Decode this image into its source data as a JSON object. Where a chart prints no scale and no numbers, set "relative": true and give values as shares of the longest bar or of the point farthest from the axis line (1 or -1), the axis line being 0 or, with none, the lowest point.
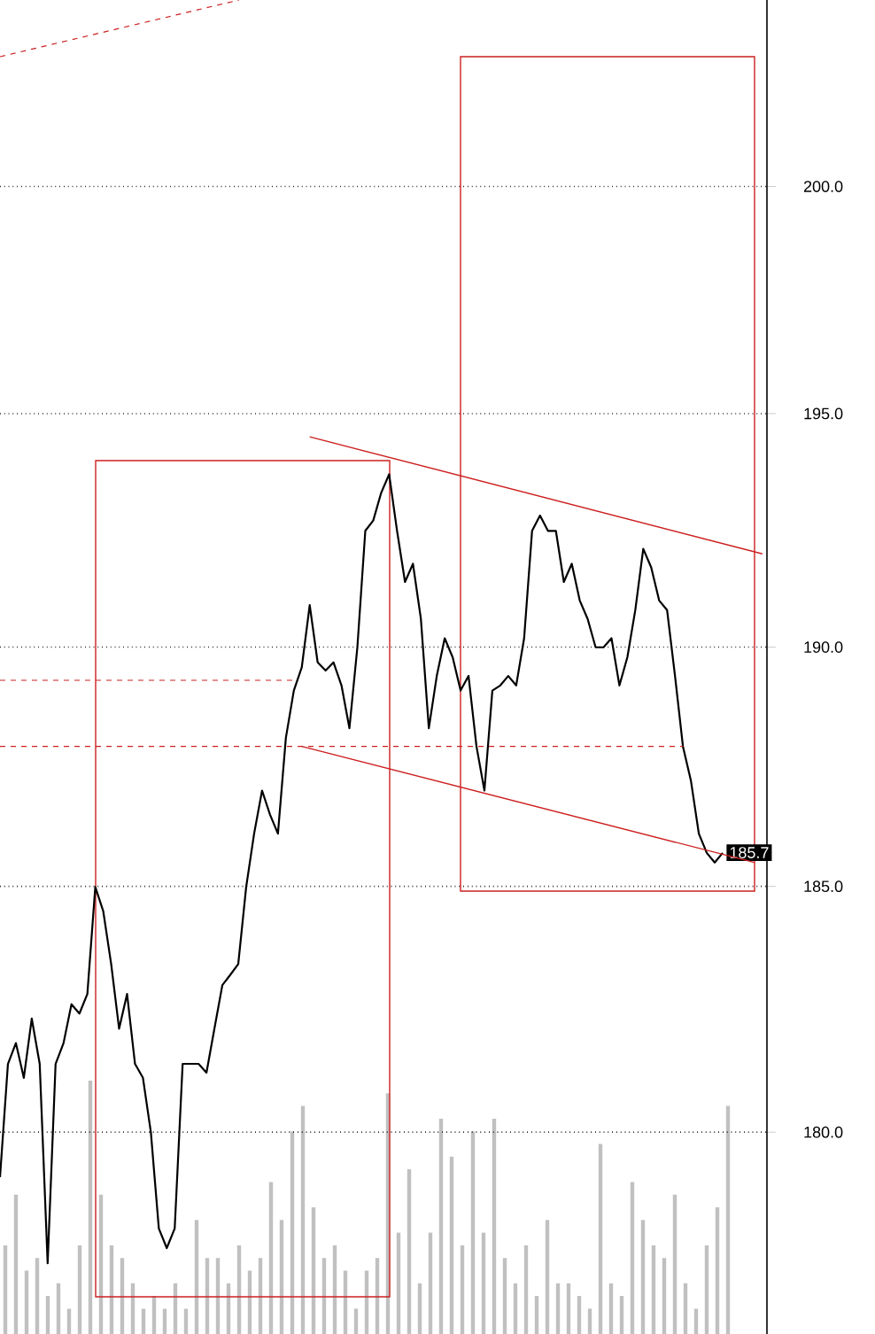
{
  "chart_data": [
    {
      "type": "bar",
      "relative": true,
      "color": "#c0c0c0",
      "categories": [
        null,
        null,
        null,
        null,
        null,
        null,
        null,
        null,
        null,
        null,
        null,
        null,
        null,
        null,
        null,
        null,
        null,
        null,
        null,
        null,
        null,
        null,
        null,
        null,
        null,
        null,
        null,
        null,
        null,
        null,
        null,
        null,
        null,
        null,
        null,
        null,
        null,
        null,
        null,
        null,
        null,
        null,
        null,
        null,
        null,
        null,
        null,
        null,
        null,
        null,
        null,
        null,
        null,
        null,
        null,
        null,
        null,
        null,
        null,
        null,
        null,
        null,
        null,
        null,
        null,
        null,
        null,
        null,
        null
      ],
      "values": [
        0.35,
        0.55,
        0.25,
        0.3,
        0.15,
        0.2,
        0.1,
        0.35,
        1.0,
        0.55,
        0.35,
        0.3,
        0.2,
        0.1,
        0.15,
        0.1,
        0.2,
        0.1,
        0.45,
        0.3,
        0.3,
        0.2,
        0.35,
        0.25,
        0.3,
        0.6,
        0.45,
        0.8,
        0.9,
        0.5,
        0.3,
        0.35,
        0.25,
        0.1,
        0.25,
        0.3,
        0.95,
        0.4,
        0.65,
        0.2,
        0.4,
        0.85,
        0.7,
        0.35,
        0.8,
        0.4,
        0.85,
        0.3,
        0.2,
        0.35,
        0.15,
        0.45,
        0.2,
        0.2,
        0.15,
        0.1,
        0.75,
        0.2,
        0.15,
        0.6,
        0.45,
        0.35,
        0.3,
        0.55,
        0.2,
        0.1,
        0.35,
        0.5,
        0.9
      ]
    },
    {
      "type": "line",
      "log": true,
      "ylim": [
        176,
        204.2
      ],
      "tick_labels": "y",
      "grid": "y",
      "yticks": [
        {
          "value": 180,
          "label": "180.0"
        },
        {
          "value": 185,
          "label": "185.0"
        },
        {
          "value": 190,
          "label": "190.0"
        },
        {
          "value": 195,
          "label": "195.0"
        },
        {
          "value": 200,
          "label": "200.0"
        }
      ],
      "categories": [
        null,
        null,
        null,
        null,
        null,
        null,
        null,
        null,
        null,
        null,
        null,
        null,
        null,
        null,
        null,
        null,
        null,
        null,
        null,
        null,
        null,
        null,
        null,
        null,
        null,
        null,
        null,
        null,
        null,
        null,
        null,
        null,
        null,
        null,
        null,
        null,
        null,
        null,
        null,
        null,
        null,
        null,
        null,
        null,
        null,
        null,
        null,
        null,
        null,
        null,
        null,
        null,
        null,
        null,
        null,
        null,
        null,
        null,
        null,
        null,
        null,
        null,
        null,
        null,
        null,
        null,
        null,
        null,
        null,
        null,
        null,
        null,
        null,
        null,
        null,
        null,
        null,
        null,
        null,
        null,
        null,
        null,
        null,
        null,
        null,
        null,
        null,
        null,
        null,
        null,
        null,
        null,
        null,
        null,
        null,
        null,
        null
      ],
      "series": [
        {
          "color": "#000000",
          "values": [
            179.1,
            181.4,
            181.8,
            181.1,
            182.3,
            181.4,
            177.4,
            181.4,
            181.8,
            182.6,
            182.4,
            182.8,
            185.0,
            184.5,
            183.4,
            182.1,
            182.8,
            181.4,
            181.1,
            180.0,
            178.1,
            177.7,
            178.1,
            181.4,
            181.4,
            181.4,
            181.2,
            182.1,
            183.0,
            183.2,
            183.4,
            185.0,
            186.1,
            187.0,
            186.5,
            186.1,
            188.1,
            189.1,
            189.6,
            190.9,
            189.7,
            189.5,
            189.7,
            189.2,
            188.3,
            190.0,
            192.5,
            192.7,
            193.3,
            193.7,
            192.5,
            191.4,
            191.8,
            190.6,
            188.3,
            189.4,
            190.2,
            189.8,
            189.1,
            189.4,
            187.9,
            187.0,
            189.1,
            189.2,
            189.4,
            189.2,
            190.2,
            192.5,
            192.8,
            192.5,
            192.5,
            191.4,
            191.8,
            191.0,
            190.6,
            190.0,
            190.0,
            190.2,
            189.2,
            189.8,
            190.8,
            192.1,
            191.7,
            191.0,
            190.8,
            189.4,
            187.9,
            187.2,
            186.1,
            185.7,
            185.5,
            185.7,
            null,
            null,
            null,
            null,
            null
          ],
          "value_labels": [
            null,
            null,
            null,
            null,
            null,
            null,
            null,
            null,
            null,
            null,
            null,
            null,
            null,
            null,
            null,
            null,
            null,
            null,
            null,
            null,
            null,
            null,
            null,
            null,
            null,
            null,
            null,
            null,
            null,
            null,
            null,
            null,
            null,
            null,
            null,
            null,
            null,
            null,
            null,
            null,
            null,
            null,
            null,
            null,
            null,
            null,
            null,
            null,
            null,
            null,
            null,
            null,
            null,
            null,
            null,
            null,
            null,
            null,
            null,
            null,
            null,
            null,
            null,
            null,
            null,
            null,
            null,
            null,
            null,
            null,
            null,
            null,
            null,
            null,
            null,
            null,
            null,
            null,
            null,
            null,
            null,
            null,
            null,
            null,
            null,
            null,
            null,
            null,
            null,
            null,
            null,
            "185.7",
            null,
            null,
            null,
            null,
            null
          ]
        },
        {
          "color": "#cc2020",
          "values": [
            null,
            null,
            null,
            null,
            null,
            null,
            null,
            null,
            null,
            null,
            null,
            null,
            null,
            null,
            null,
            null,
            null,
            null,
            null,
            null,
            null,
            null,
            null,
            null,
            null,
            null,
            null,
            null,
            null,
            null,
            null,
            null,
            null,
            null,
            null,
            null,
            null,
            null,
            null,
            194.5,
            null,
            null,
            null,
            null,
            null,
            null,
            null,
            null,
            null,
            null,
            null,
            null,
            null,
            null,
            null,
            null,
            null,
            null,
            null,
            null,
            null,
            null,
            null,
            null,
            null,
            null,
            null,
            null,
            null,
            null,
            null,
            null,
            null,
            null,
            null,
            null,
            null,
            null,
            null,
            null,
            null,
            null,
            null,
            null,
            null,
            null,
            null,
            null,
            null,
            null,
            null,
            null,
            null,
            null,
            null,
            null,
            192.0
          ]
        },
        {
          "color": "#cc2020",
          "values": [
            null,
            null,
            null,
            null,
            null,
            null,
            null,
            null,
            null,
            null,
            null,
            null,
            null,
            null,
            null,
            null,
            null,
            null,
            null,
            null,
            null,
            null,
            null,
            null,
            null,
            null,
            null,
            null,
            null,
            null,
            null,
            null,
            null,
            null,
            null,
            null,
            null,
            null,
            187.9,
            null,
            null,
            null,
            null,
            null,
            null,
            null,
            null,
            null,
            null,
            null,
            null,
            null,
            null,
            null,
            null,
            null,
            null,
            null,
            null,
            null,
            null,
            null,
            null,
            null,
            null,
            null,
            null,
            null,
            null,
            null,
            null,
            null,
            null,
            null,
            null,
            null,
            null,
            null,
            null,
            null,
            null,
            null,
            null,
            null,
            null,
            null,
            null,
            null,
            null,
            null,
            null,
            null,
            null,
            null,
            null,
            185.5,
            null
          ]
        },
        {
          "color": "#cc2020",
          "line_style": "dashed",
          "values": [
            187.9,
            null,
            null,
            null,
            null,
            null,
            null,
            null,
            null,
            null,
            null,
            null,
            null,
            null,
            null,
            null,
            null,
            null,
            null,
            null,
            null,
            null,
            null,
            null,
            null,
            null,
            null,
            null,
            null,
            null,
            null,
            null,
            null,
            null,
            null,
            null,
            null,
            null,
            null,
            null,
            null,
            null,
            null,
            null,
            null,
            null,
            null,
            null,
            null,
            null,
            null,
            null,
            null,
            null,
            null,
            null,
            null,
            null,
            null,
            null,
            null,
            null,
            null,
            null,
            null,
            null,
            null,
            null,
            null,
            null,
            null,
            null,
            null,
            null,
            null,
            null,
            null,
            null,
            null,
            null,
            null,
            null,
            null,
            null,
            null,
            null,
            187.9,
            null,
            null,
            null,
            null,
            null,
            null,
            null,
            null,
            null,
            null
          ]
        }
      ]
    }
  ]
}
